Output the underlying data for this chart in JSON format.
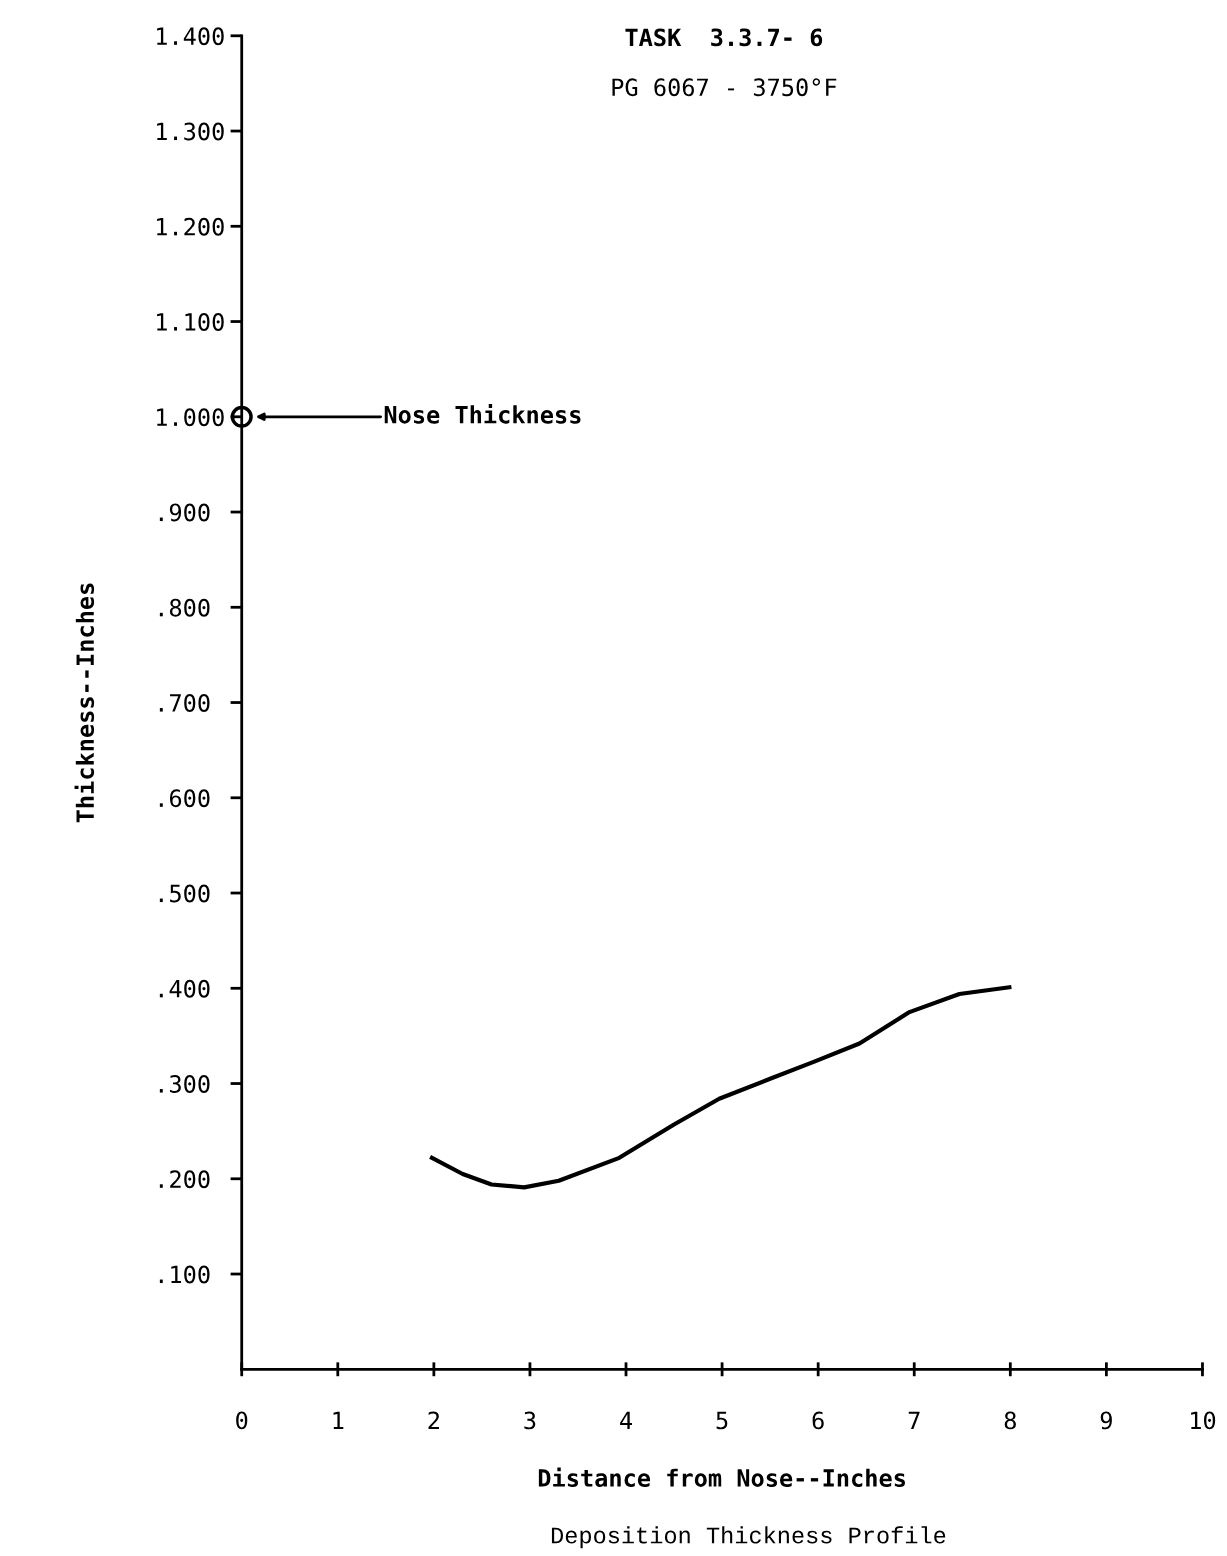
{
  "chart_data": {
    "type": "line",
    "title": "TASK  3.3.7- 6",
    "subtitle": "PG 6067 - 3750°F",
    "xlabel": "Distance from Nose--Inches",
    "ylabel": "Thickness--Inches",
    "xlim": [
      0,
      10
    ],
    "ylim": [
      0,
      1.4
    ],
    "xticks": [
      0,
      1,
      2,
      3,
      4,
      5,
      6,
      7,
      8,
      9,
      10
    ],
    "yticks": [
      {
        "value": 0.1,
        "label": ".100"
      },
      {
        "value": 0.2,
        "label": ".200"
      },
      {
        "value": 0.3,
        "label": ".300"
      },
      {
        "value": 0.4,
        "label": ".400"
      },
      {
        "value": 0.5,
        "label": ".500"
      },
      {
        "value": 0.6,
        "label": ".600"
      },
      {
        "value": 0.7,
        "label": ".700"
      },
      {
        "value": 0.8,
        "label": ".800"
      },
      {
        "value": 0.9,
        "label": ".900"
      },
      {
        "value": 1.0,
        "label": "1.000"
      },
      {
        "value": 1.1,
        "label": "1.100"
      },
      {
        "value": 1.2,
        "label": "1.200"
      },
      {
        "value": 1.3,
        "label": "1.300"
      },
      {
        "value": 1.4,
        "label": "1.400"
      }
    ],
    "series": [
      {
        "color": "#000000",
        "marker": "none",
        "line_style": "solid",
        "x": [
          1.98,
          2.3,
          2.6,
          2.94,
          3.3,
          3.93,
          4.5,
          4.97,
          5.5,
          5.96,
          6.43,
          6.95,
          7.47,
          7.99
        ],
        "values": [
          0.222,
          0.205,
          0.194,
          0.191,
          0.198,
          0.222,
          0.257,
          0.284,
          0.305,
          0.323,
          0.342,
          0.375,
          0.394,
          0.401
        ]
      },
      {
        "type": "scatter",
        "color": "#000000",
        "marker": "circle",
        "x": [
          0
        ],
        "values": [
          1.0
        ]
      }
    ],
    "annotations": [
      "Nose Thickness",
      "Deposition Thickness Profile"
    ],
    "grid": false,
    "legend": false
  }
}
